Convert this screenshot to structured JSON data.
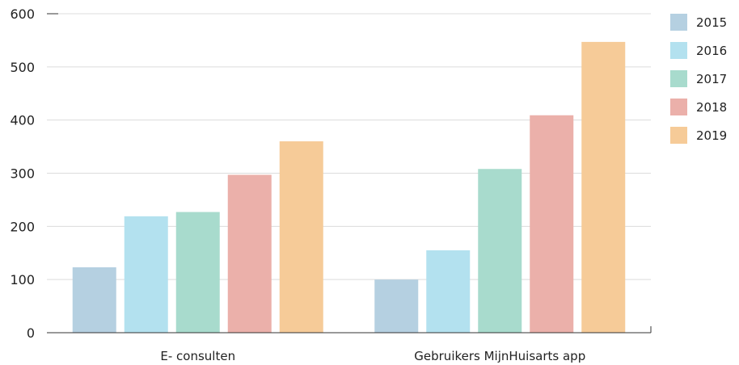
{
  "chart_data": {
    "type": "bar",
    "categories": [
      "E- consulten",
      "Gebruikers MijnHuisarts app"
    ],
    "series": [
      {
        "name": "2015",
        "values": [
          123,
          100
        ],
        "color": "#b5d0e1"
      },
      {
        "name": "2016",
        "values": [
          219,
          155
        ],
        "color": "#b3e1ef"
      },
      {
        "name": "2017",
        "values": [
          227,
          308
        ],
        "color": "#a8dbcd"
      },
      {
        "name": "2018",
        "values": [
          297,
          409
        ],
        "color": "#ebb0aa"
      },
      {
        "name": "2019",
        "values": [
          360,
          547
        ],
        "color": "#f6cb98"
      }
    ],
    "ylim": [
      0,
      600
    ],
    "yticks": [
      0,
      100,
      200,
      300,
      400,
      500,
      600
    ],
    "grid": true,
    "legend": "right"
  }
}
